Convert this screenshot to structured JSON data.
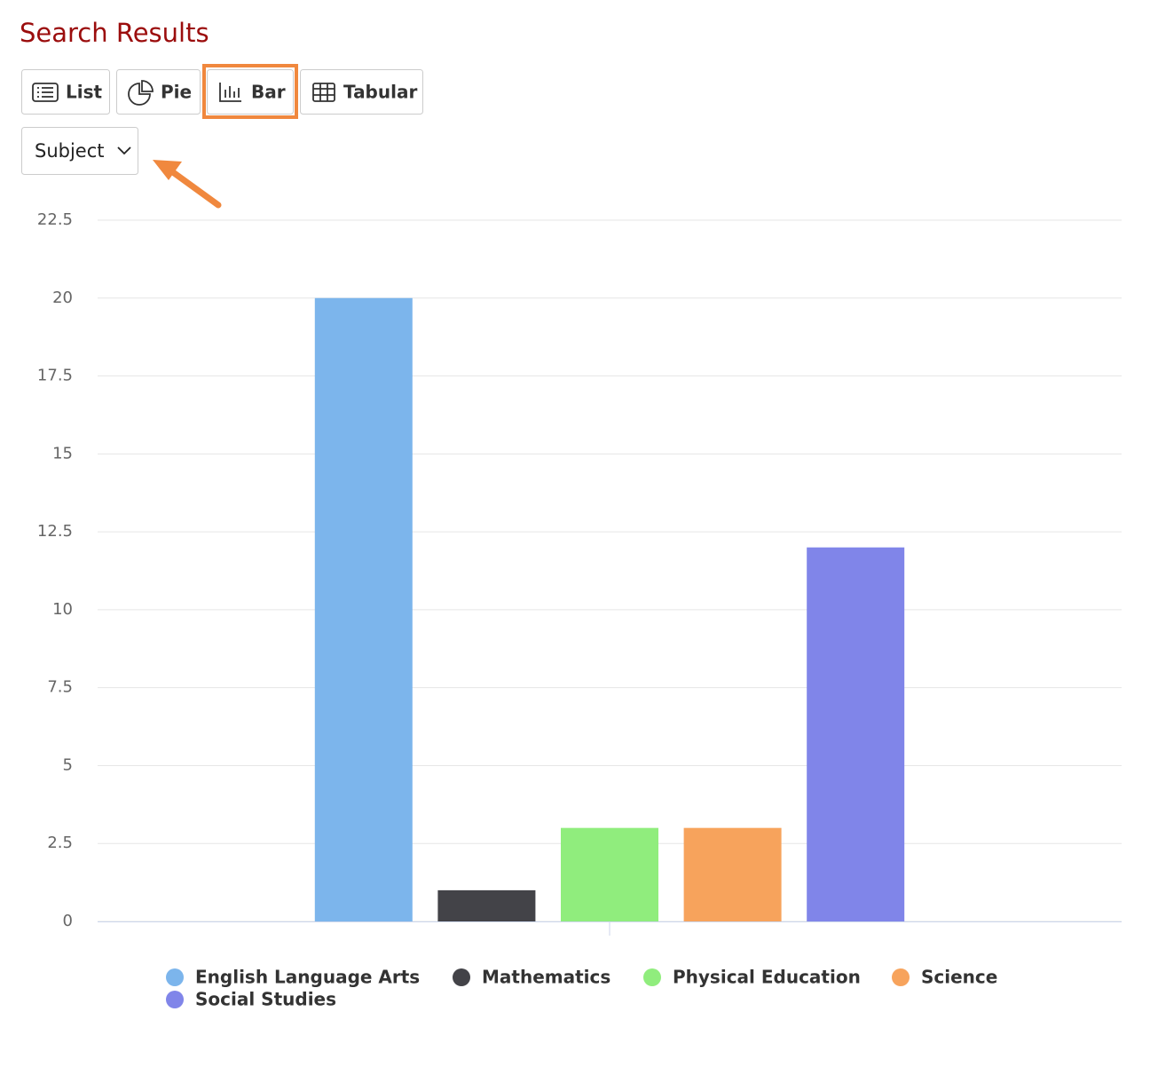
{
  "header": {
    "title": "Search Results"
  },
  "toolbar": {
    "buttons": [
      "List",
      "Pie",
      "Bar",
      "Tabular"
    ]
  },
  "dropdown": {
    "selected": "Subject"
  },
  "chart_data": {
    "type": "bar",
    "categories": [
      null
    ],
    "series": [
      {
        "name": "English Language Arts",
        "color": "#7cb5ec",
        "values": [
          20
        ]
      },
      {
        "name": "Mathematics",
        "color": "#434348",
        "values": [
          1
        ]
      },
      {
        "name": "Physical Education",
        "color": "#90ed7d",
        "values": [
          3
        ]
      },
      {
        "name": "Science",
        "color": "#f7a35c",
        "values": [
          3
        ]
      },
      {
        "name": "Social Studies",
        "color": "#8085e9",
        "values": [
          12
        ]
      }
    ],
    "ylim": [
      0,
      22.5
    ],
    "yticks": [
      0,
      2.5,
      5,
      7.5,
      10,
      12.5,
      15,
      17.5,
      20,
      22.5
    ],
    "grid": true
  }
}
